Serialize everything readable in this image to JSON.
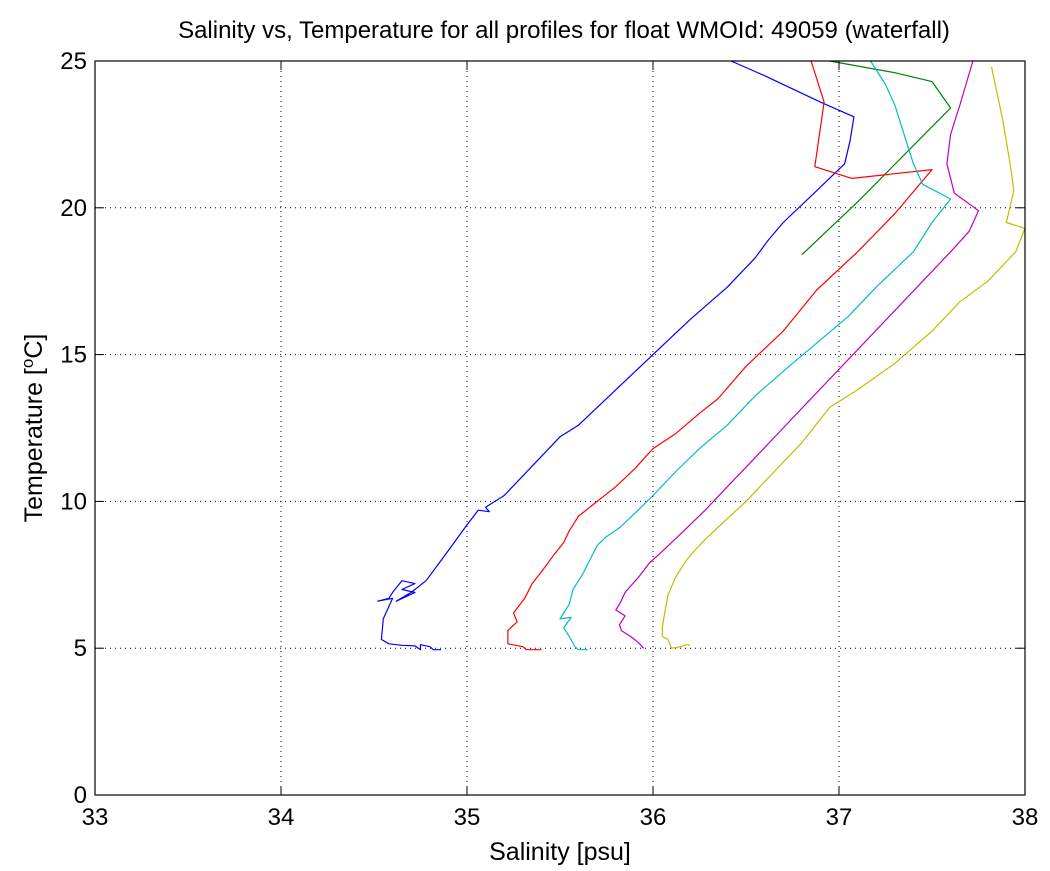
{
  "chart_data": {
    "type": "line",
    "title": "Salinity vs, Temperature for all profiles for float WMOId: 49059 (waterfall)",
    "xlabel": "Salinity [psu]",
    "ylabel_main": "Temperature [",
    "ylabel_sup": "o",
    "ylabel_end": "C]",
    "xlim": [
      33,
      38
    ],
    "ylim": [
      0,
      25
    ],
    "xticks": [
      33,
      34,
      35,
      36,
      37,
      38
    ],
    "yticks": [
      0,
      5,
      10,
      15,
      20,
      25
    ],
    "grid": true,
    "series": [
      {
        "color": "#0000ff",
        "points": [
          [
            36.42,
            25.0
          ],
          [
            36.6,
            24.5
          ],
          [
            36.9,
            23.6
          ],
          [
            37.08,
            23.1
          ],
          [
            37.06,
            22.3
          ],
          [
            37.03,
            21.5
          ],
          [
            36.85,
            20.4
          ],
          [
            36.7,
            19.5
          ],
          [
            36.62,
            18.9
          ],
          [
            36.55,
            18.3
          ],
          [
            36.4,
            17.3
          ],
          [
            36.2,
            16.2
          ],
          [
            36.0,
            15.0
          ],
          [
            35.8,
            13.8
          ],
          [
            35.6,
            12.6
          ],
          [
            35.5,
            12.2
          ],
          [
            35.35,
            11.2
          ],
          [
            35.2,
            10.2
          ],
          [
            35.1,
            9.8
          ],
          [
            35.12,
            9.65
          ],
          [
            35.06,
            9.7
          ],
          [
            35.0,
            9.2
          ],
          [
            34.92,
            8.5
          ],
          [
            34.85,
            7.9
          ],
          [
            34.78,
            7.3
          ],
          [
            34.7,
            6.9
          ],
          [
            34.62,
            6.6
          ],
          [
            34.72,
            6.9
          ],
          [
            34.65,
            7.0
          ],
          [
            34.72,
            7.2
          ],
          [
            34.65,
            7.3
          ],
          [
            34.6,
            6.9
          ],
          [
            34.58,
            6.7
          ],
          [
            34.52,
            6.6
          ],
          [
            34.6,
            6.7
          ],
          [
            34.55,
            6.0
          ],
          [
            34.54,
            5.3
          ],
          [
            34.58,
            5.15
          ],
          [
            34.65,
            5.1
          ],
          [
            34.72,
            5.08
          ],
          [
            34.75,
            4.95
          ],
          [
            34.75,
            5.12
          ],
          [
            34.8,
            5.05
          ],
          [
            34.82,
            4.95
          ],
          [
            34.86,
            4.95
          ]
        ]
      },
      {
        "color": "#008000",
        "points": [
          [
            36.95,
            25.0
          ],
          [
            37.3,
            24.6
          ],
          [
            37.5,
            24.3
          ],
          [
            37.6,
            23.4
          ],
          [
            37.1,
            20.2
          ],
          [
            36.8,
            18.4
          ]
        ]
      },
      {
        "color": "#ff0000",
        "points": [
          [
            36.85,
            25.0
          ],
          [
            36.92,
            23.6
          ],
          [
            36.87,
            21.4
          ],
          [
            37.07,
            21.0
          ],
          [
            37.5,
            21.3
          ],
          [
            37.3,
            19.8
          ],
          [
            37.1,
            18.5
          ],
          [
            36.88,
            17.2
          ],
          [
            36.7,
            15.8
          ],
          [
            36.5,
            14.6
          ],
          [
            36.35,
            13.5
          ],
          [
            36.25,
            13.0
          ],
          [
            36.12,
            12.3
          ],
          [
            36.0,
            11.8
          ],
          [
            35.9,
            11.1
          ],
          [
            35.8,
            10.5
          ],
          [
            35.7,
            10.0
          ],
          [
            35.6,
            9.5
          ],
          [
            35.55,
            9.0
          ],
          [
            35.52,
            8.6
          ],
          [
            35.47,
            8.2
          ],
          [
            35.4,
            7.6
          ],
          [
            35.35,
            7.2
          ],
          [
            35.31,
            6.7
          ],
          [
            35.25,
            6.2
          ],
          [
            35.27,
            5.9
          ],
          [
            35.22,
            5.6
          ],
          [
            35.22,
            5.15
          ],
          [
            35.3,
            5.05
          ],
          [
            35.32,
            4.95
          ],
          [
            35.4,
            4.95
          ]
        ]
      },
      {
        "color": "#00bfbf",
        "points": [
          [
            37.17,
            25.0
          ],
          [
            37.25,
            24.2
          ],
          [
            37.3,
            23.5
          ],
          [
            37.35,
            22.5
          ],
          [
            37.4,
            21.5
          ],
          [
            37.45,
            20.8
          ],
          [
            37.6,
            20.3
          ],
          [
            37.5,
            19.5
          ],
          [
            37.4,
            18.5
          ],
          [
            37.2,
            17.3
          ],
          [
            37.05,
            16.3
          ],
          [
            36.9,
            15.5
          ],
          [
            36.75,
            14.7
          ],
          [
            36.55,
            13.6
          ],
          [
            36.4,
            12.6
          ],
          [
            36.25,
            11.8
          ],
          [
            36.12,
            11.0
          ],
          [
            36.0,
            10.2
          ],
          [
            35.92,
            9.7
          ],
          [
            35.82,
            9.1
          ],
          [
            35.75,
            8.8
          ],
          [
            35.7,
            8.5
          ],
          [
            35.66,
            8.0
          ],
          [
            35.62,
            7.5
          ],
          [
            35.57,
            7.0
          ],
          [
            35.55,
            6.5
          ],
          [
            35.52,
            6.2
          ],
          [
            35.5,
            6.0
          ],
          [
            35.56,
            6.05
          ],
          [
            35.52,
            5.7
          ],
          [
            35.55,
            5.4
          ],
          [
            35.58,
            5.05
          ],
          [
            35.6,
            4.95
          ],
          [
            35.65,
            4.95
          ]
        ]
      },
      {
        "color": "#bf00bf",
        "points": [
          [
            37.72,
            25.0
          ],
          [
            37.65,
            23.5
          ],
          [
            37.6,
            22.5
          ],
          [
            37.58,
            21.5
          ],
          [
            37.62,
            20.5
          ],
          [
            37.75,
            19.9
          ],
          [
            37.7,
            19.2
          ],
          [
            37.6,
            18.5
          ],
          [
            37.45,
            17.5
          ],
          [
            37.3,
            16.5
          ],
          [
            37.15,
            15.5
          ],
          [
            37.0,
            14.5
          ],
          [
            36.85,
            13.5
          ],
          [
            36.7,
            12.5
          ],
          [
            36.55,
            11.5
          ],
          [
            36.4,
            10.5
          ],
          [
            36.28,
            9.7
          ],
          [
            36.15,
            8.9
          ],
          [
            36.05,
            8.3
          ],
          [
            35.98,
            7.9
          ],
          [
            35.92,
            7.4
          ],
          [
            35.85,
            6.9
          ],
          [
            35.82,
            6.5
          ],
          [
            35.8,
            6.3
          ],
          [
            35.85,
            6.1
          ],
          [
            35.82,
            5.8
          ],
          [
            35.83,
            5.6
          ],
          [
            35.88,
            5.4
          ],
          [
            35.92,
            5.2
          ],
          [
            35.95,
            5.0
          ]
        ]
      },
      {
        "color": "#bfbf00",
        "points": [
          [
            37.82,
            24.8
          ],
          [
            37.88,
            23.0
          ],
          [
            37.92,
            21.5
          ],
          [
            37.94,
            20.6
          ],
          [
            37.9,
            19.5
          ],
          [
            38.0,
            19.3
          ],
          [
            37.95,
            18.5
          ],
          [
            37.8,
            17.5
          ],
          [
            37.65,
            16.8
          ],
          [
            37.5,
            15.8
          ],
          [
            37.3,
            14.7
          ],
          [
            37.1,
            13.8
          ],
          [
            36.95,
            13.2
          ],
          [
            36.8,
            12.0
          ],
          [
            36.65,
            11.0
          ],
          [
            36.5,
            10.0
          ],
          [
            36.38,
            9.3
          ],
          [
            36.28,
            8.7
          ],
          [
            36.22,
            8.3
          ],
          [
            36.18,
            8.0
          ],
          [
            36.12,
            7.4
          ],
          [
            36.08,
            6.8
          ],
          [
            36.06,
            6.1
          ],
          [
            36.05,
            5.7
          ],
          [
            36.05,
            5.4
          ],
          [
            36.08,
            5.3
          ],
          [
            36.1,
            5.0
          ],
          [
            36.15,
            5.05
          ],
          [
            36.18,
            5.12
          ],
          [
            36.2,
            5.1
          ]
        ]
      }
    ]
  }
}
